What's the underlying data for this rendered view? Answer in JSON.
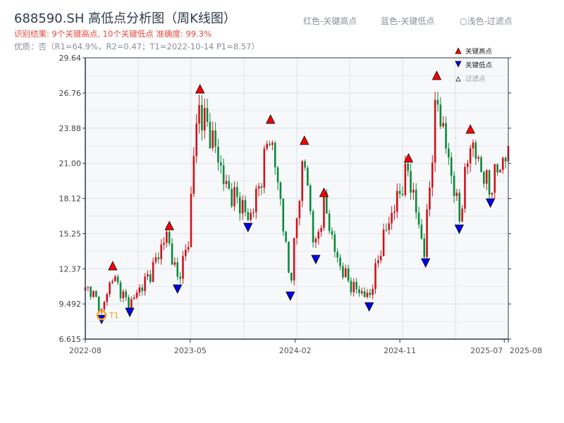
{
  "header": {
    "title": "688590.SH 高低点分析图（周K线图）",
    "result": "识别结果: 9个关键高点, 10个关键低点  准确度: 99.3%",
    "quality": "优质：否（R1=64.9%，R2=0.47；T1=2022-10-14 P1=8.57）",
    "legend_text": [
      "红色-关键高点",
      "蓝色-关键低点",
      "○浅色-过滤点"
    ]
  },
  "colors": {
    "up": "#d0121b",
    "down": "#0b8a3a",
    "high_marker": "#ff0000",
    "low_marker": "#0000ee",
    "t1": "#f5a623",
    "axis": "#2e3a4a",
    "plot_bg": "#f6f8fa",
    "grid": "#dde2e8"
  },
  "chart_data": {
    "type": "candlestick",
    "title": "688590.SH 高低点分析图（周K线图）",
    "ylim": [
      6.615,
      29.64
    ],
    "y_ticks": [
      "29.64",
      "26.76",
      "23.88",
      "21.00",
      "18.12",
      "15.25",
      "12.37",
      "9.492",
      "6.615"
    ],
    "y_tick_values": [
      29.64,
      26.76,
      23.88,
      21.0,
      18.12,
      15.25,
      12.37,
      9.492,
      6.615
    ],
    "x_range_weeks": [
      0,
      156
    ],
    "x_ticks": [
      {
        "label": "2022-08",
        "week": 0
      },
      {
        "label": "2023-05",
        "week": 38.7
      },
      {
        "label": "2024-02",
        "week": 77.4
      },
      {
        "label": "2024-11",
        "week": 116
      },
      {
        "label": "2025-07",
        "week": 154.5
      },
      {
        "label": "2025-08",
        "week": 156
      }
    ],
    "price_path": [
      [
        0,
        10.6
      ],
      [
        2,
        10.7
      ],
      [
        6,
        8.9
      ],
      [
        10,
        11.8
      ],
      [
        16,
        9.4
      ],
      [
        24,
        12
      ],
      [
        30,
        15.2
      ],
      [
        34,
        11.5
      ],
      [
        38,
        14.5
      ],
      [
        40,
        22
      ],
      [
        42,
        25.5
      ],
      [
        47,
        23
      ],
      [
        52,
        19
      ],
      [
        58,
        17.5
      ],
      [
        60.3,
        16.3
      ],
      [
        64,
        19
      ],
      [
        68,
        23.5
      ],
      [
        72,
        18
      ],
      [
        75.5,
        11
      ],
      [
        80.5,
        21.8
      ],
      [
        84.7,
        13.8
      ],
      [
        88,
        17.8
      ],
      [
        93,
        13
      ],
      [
        98,
        11
      ],
      [
        104.7,
        10
      ],
      [
        110,
        15
      ],
      [
        119,
        20.5
      ],
      [
        125,
        13.7
      ],
      [
        129.6,
        26.5
      ],
      [
        138,
        16.5
      ],
      [
        142,
        22.8
      ],
      [
        149,
        18.8
      ],
      [
        152,
        20.5
      ],
      [
        156,
        21.8
      ]
    ],
    "key_highs": [
      [
        10.1,
        12.27
      ],
      [
        31,
        15.56
      ],
      [
        42.3,
        26.75
      ],
      [
        68.3,
        24.27
      ],
      [
        80.8,
        22.54
      ],
      [
        88,
        18.27
      ],
      [
        119.2,
        21.1
      ],
      [
        129.6,
        27.85
      ],
      [
        142,
        23.46
      ]
    ],
    "key_lows": [
      [
        6,
        8.57
      ],
      [
        16.4,
        9.15
      ],
      [
        34,
        11.06
      ],
      [
        60,
        16.1
      ],
      [
        75.6,
        10.48
      ],
      [
        85,
        13.48
      ],
      [
        104.7,
        9.6
      ],
      [
        125.5,
        13.2
      ],
      [
        137.9,
        15.96
      ],
      [
        149.4,
        18.1
      ]
    ],
    "t1": {
      "label": "T1",
      "week": 6,
      "price": 8.57
    },
    "legend": [
      "关键高点",
      "关键低点",
      "过滤点"
    ]
  }
}
